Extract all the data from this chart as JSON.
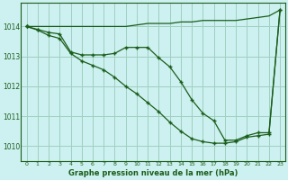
{
  "title": "Graphe pression niveau de la mer (hPa)",
  "bg_color": "#cdf0f0",
  "grid_color": "#a0cfc0",
  "line_color": "#1a5e1a",
  "xlim": [
    -0.5,
    23.5
  ],
  "ylim": [
    1009.5,
    1014.8
  ],
  "yticks": [
    1010,
    1011,
    1012,
    1013,
    1014
  ],
  "xticks": [
    0,
    1,
    2,
    3,
    4,
    5,
    6,
    7,
    8,
    9,
    10,
    11,
    12,
    13,
    14,
    15,
    16,
    17,
    18,
    19,
    20,
    21,
    22,
    23
  ],
  "line1_x": [
    0,
    1,
    2,
    3,
    4,
    5,
    6,
    7,
    8,
    9,
    10,
    11,
    12,
    13,
    14,
    15,
    16,
    17,
    18,
    19,
    20,
    21,
    22,
    23
  ],
  "line1_y": [
    1014.0,
    1014.0,
    1014.0,
    1014.0,
    1014.0,
    1014.0,
    1014.0,
    1014.0,
    1014.0,
    1014.0,
    1014.05,
    1014.1,
    1014.1,
    1014.1,
    1014.15,
    1014.15,
    1014.2,
    1014.2,
    1014.2,
    1014.2,
    1014.25,
    1014.3,
    1014.35,
    1014.55
  ],
  "line2_x": [
    0,
    1,
    2,
    3,
    4,
    5,
    6,
    7,
    8,
    9,
    10,
    11,
    12,
    13,
    14,
    15,
    16,
    17,
    18,
    19,
    20,
    21,
    22,
    23
  ],
  "line2_y": [
    1014.0,
    1013.9,
    1013.8,
    1013.75,
    1013.15,
    1013.05,
    1013.05,
    1013.05,
    1013.1,
    1013.3,
    1013.3,
    1013.3,
    1012.95,
    1012.65,
    1012.15,
    1011.55,
    1011.1,
    1010.85,
    1010.2,
    1010.2,
    1010.35,
    1010.45,
    1010.45,
    1014.55
  ],
  "line3_x": [
    0,
    1,
    2,
    3,
    4,
    5,
    6,
    7,
    8,
    9,
    10,
    11,
    12,
    13,
    14,
    15,
    16,
    17,
    18,
    19,
    20,
    21,
    22,
    23
  ],
  "line3_y": [
    1014.0,
    1013.88,
    1013.7,
    1013.6,
    1013.1,
    1012.85,
    1012.7,
    1012.55,
    1012.3,
    1012.0,
    1011.75,
    1011.45,
    1011.15,
    1010.8,
    1010.5,
    1010.25,
    1010.15,
    1010.1,
    1010.1,
    1010.15,
    1010.3,
    1010.35,
    1010.4,
    1014.55
  ]
}
